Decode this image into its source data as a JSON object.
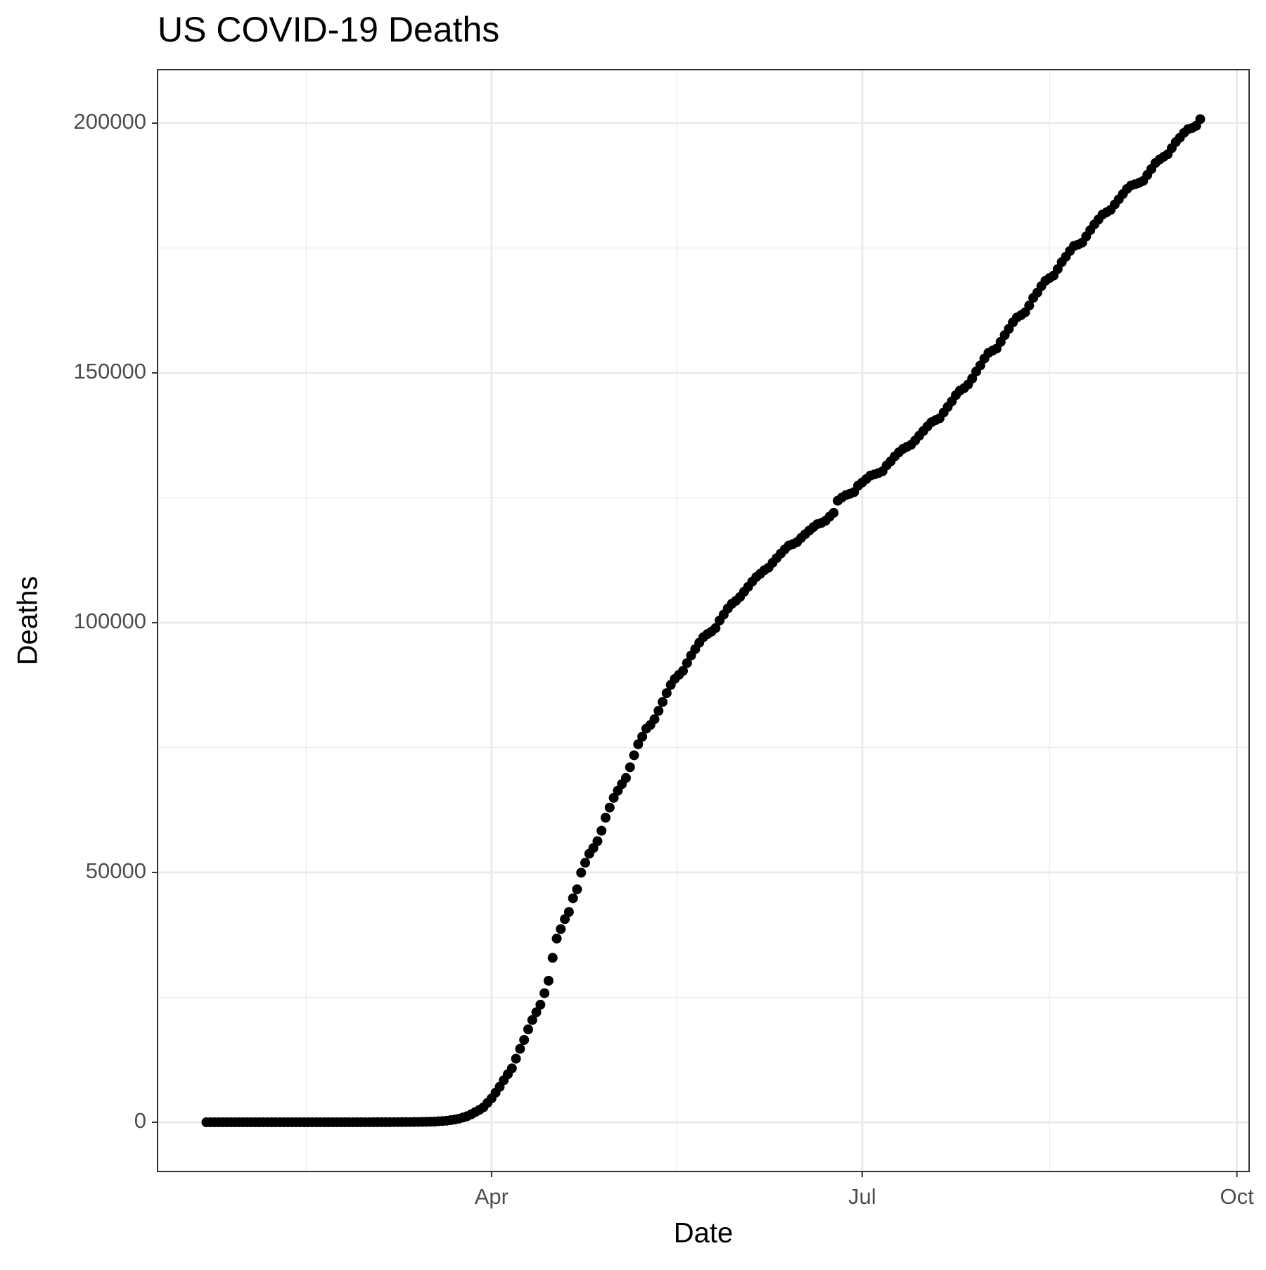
{
  "chart_data": {
    "type": "scatter",
    "title": "US COVID-19 Deaths",
    "x_label": "Date",
    "y_label": "Deaths",
    "x": [
      21,
      22,
      23,
      24,
      25,
      26,
      27,
      28,
      29,
      30,
      31,
      32,
      33,
      34,
      35,
      36,
      37,
      38,
      39,
      40,
      41,
      42,
      43,
      44,
      45,
      46,
      47,
      48,
      49,
      50,
      51,
      52,
      53,
      54,
      55,
      56,
      57,
      58,
      59,
      60,
      61,
      62,
      63,
      64,
      65,
      66,
      67,
      68,
      69,
      70,
      71,
      72,
      73,
      74,
      75,
      76,
      77,
      78,
      79,
      80,
      81,
      82,
      83,
      84,
      85,
      86,
      87,
      88,
      89,
      90,
      91,
      92,
      93,
      94,
      95,
      96,
      97,
      98,
      99,
      100,
      101,
      102,
      103,
      104,
      105,
      106,
      107,
      108,
      109,
      110,
      111,
      112,
      113,
      114,
      115,
      116,
      117,
      118,
      119,
      120,
      121,
      122,
      123,
      124,
      125,
      126,
      127,
      128,
      129,
      130,
      131,
      132,
      133,
      134,
      135,
      136,
      137,
      138,
      139,
      140,
      141,
      142,
      143,
      144,
      145,
      146,
      147,
      148,
      149,
      150,
      151,
      152,
      153,
      154,
      155,
      156,
      157,
      158,
      159,
      160,
      161,
      162,
      163,
      164,
      165,
      166,
      167,
      168,
      169,
      170,
      171,
      172,
      173,
      174,
      175,
      176,
      177,
      178,
      179,
      180,
      181,
      182,
      183,
      184,
      185,
      186,
      187,
      188,
      189,
      190,
      191,
      192,
      193,
      194,
      195,
      196,
      197,
      198,
      199,
      200,
      201,
      202,
      203,
      204,
      205,
      206,
      207,
      208,
      209,
      210,
      211,
      212,
      213,
      214,
      215,
      216,
      217,
      218,
      219,
      220,
      221,
      222,
      223,
      224,
      225,
      226,
      227,
      228,
      229,
      230,
      231,
      232,
      233,
      234,
      235,
      236,
      237,
      238,
      239,
      240,
      241,
      242,
      243,
      244,
      245,
      246,
      247,
      248,
      249,
      250,
      251,
      252,
      253,
      254,
      255,
      256,
      257,
      258,
      259,
      260,
      261,
      262,
      263,
      264,
      265
    ],
    "series": [
      {
        "name": "Deaths",
        "color": "#000000",
        "values": [
          0,
          0,
          0,
          0,
          0,
          0,
          0,
          0,
          0,
          0,
          0,
          0,
          0,
          0,
          0,
          0,
          0,
          0,
          0,
          0,
          0,
          0,
          0,
          0,
          0,
          0,
          0,
          0,
          0,
          0,
          0,
          0,
          0,
          0,
          0,
          0,
          0,
          0,
          1,
          1,
          6,
          9,
          11,
          12,
          14,
          17,
          21,
          22,
          28,
          36,
          40,
          47,
          54,
          63,
          85,
          108,
          118,
          200,
          244,
          307,
          427,
          552,
          706,
          942,
          1209,
          1581,
          2026,
          2467,
          2978,
          3873,
          4757,
          5926,
          7087,
          8407,
          9619,
          10783,
          12722,
          14695,
          16478,
          18586,
          20463,
          22020,
          23529,
          25832,
          28325,
          32916,
          36773,
          38664,
          40661,
          42094,
          44845,
          46622,
          49954,
          51949,
          53755,
          54881,
          56259,
          58355,
          60966,
          62996,
          64943,
          66369,
          67682,
          68922,
          71064,
          73455,
          75662,
          77180,
          78795,
          79526,
          80682,
          82356,
          84119,
          85898,
          87530,
          88754,
          89562,
          90347,
          91921,
          93439,
          94702,
          95979,
          97087,
          97720,
          98220,
          98916,
          100442,
          101617,
          102836,
          103781,
          104381,
          105147,
          106195,
          107175,
          108211,
          109143,
          109802,
          110514,
          111007,
          111978,
          112924,
          113820,
          114669,
          115436,
          115732,
          116127,
          116963,
          117717,
          118435,
          119112,
          119719,
          119977,
          120402,
          121225,
          121979,
          124410,
          125039,
          125539,
          125803,
          126140,
          127425,
          128062,
          128740,
          129434,
          129676,
          129947,
          130312,
          131480,
          132309,
          133291,
          134097,
          134777,
          135205,
          135605,
          136466,
          137419,
          138360,
          139266,
          140119,
          140534,
          140909,
          142064,
          143190,
          144305,
          145546,
          146463,
          146935,
          147672,
          148866,
          150283,
          151499,
          152870,
          154002,
          154449,
          154860,
          156211,
          157566,
          158811,
          160104,
          161096,
          161558,
          162111,
          163479,
          165022,
          166069,
          167361,
          168446,
          168987,
          169483,
          170776,
          172166,
          173251,
          174405,
          175416,
          175681,
          176075,
          177318,
          178579,
          179721,
          180698,
          181702,
          182158,
          182637,
          183714,
          184736,
          185794,
          186815,
          187518,
          187753,
          188053,
          188446,
          189619,
          190825,
          192005,
          192718,
          193245,
          193748,
          194991,
          196205,
          197076,
          198048,
          198796,
          199015,
          199469,
          200791
        ]
      }
    ],
    "xlim": [
      9,
      277
    ],
    "xticks": [
      {
        "value": 91,
        "label": "Apr"
      },
      {
        "value": 182,
        "label": "Jul"
      },
      {
        "value": 274,
        "label": "Oct"
      }
    ],
    "x_minor_ticks": [
      45.5,
      136.5,
      228
    ],
    "ylim": [
      -9860,
      210700
    ],
    "yticks": [
      0,
      50000,
      100000,
      150000,
      200000
    ],
    "y_minor_ticks": [
      25000,
      75000,
      125000,
      175000
    ],
    "grid": true
  }
}
